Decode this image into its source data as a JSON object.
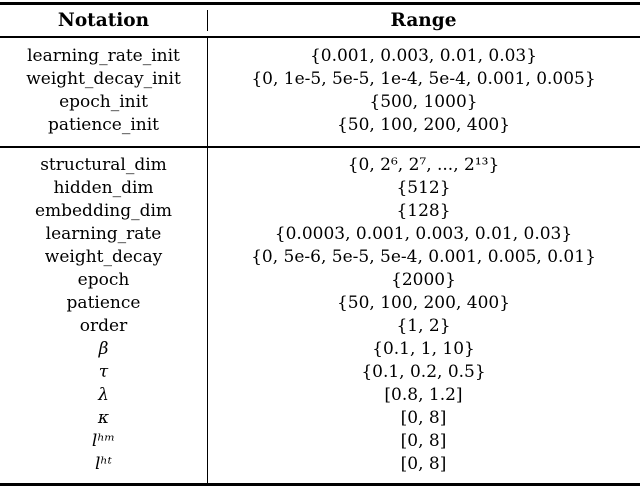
{
  "colors": {
    "background": "#ffffff",
    "text": "#000000",
    "rule": "#000000"
  },
  "table": {
    "header": {
      "notation": "Notation",
      "range": "Range"
    },
    "sections": [
      {
        "rows": [
          {
            "notation": "learning_rate_init",
            "range": "{0.001, 0.003, 0.01, 0.03}"
          },
          {
            "notation": "weight_decay_init",
            "range": "{0, 1e-5, 5e-5, 1e-4, 5e-4, 0.001, 0.005}"
          },
          {
            "notation": "epoch_init",
            "range": "{500, 1000}"
          },
          {
            "notation": "patience_init",
            "range": "{50, 100, 200, 400}"
          }
        ]
      },
      {
        "rows": [
          {
            "notation": "structural_dim",
            "range": "{0, 2⁶, 2⁷, ..., 2¹³}"
          },
          {
            "notation": "hidden_dim",
            "range": "{512}"
          },
          {
            "notation": "embedding_dim",
            "range": "{128}"
          },
          {
            "notation": "learning_rate",
            "range": "{0.0003, 0.001, 0.003, 0.01, 0.03}"
          },
          {
            "notation": "weight_decay",
            "range": "{0, 5e-6, 5e-5, 5e-4, 0.001, 0.005, 0.01}"
          },
          {
            "notation": "epoch",
            "range": "{2000}"
          },
          {
            "notation": "patience",
            "range": "{50, 100, 200, 400}"
          },
          {
            "notation": "order",
            "range": "{1, 2}"
          },
          {
            "notation": "β",
            "range": "{0.1, 1, 10}"
          },
          {
            "notation": "τ",
            "range": "{0.1, 0.2, 0.5}"
          },
          {
            "notation": "λ",
            "range": "[0.8, 1.2]"
          },
          {
            "notation": "κ",
            "range": "[0, 8]"
          },
          {
            "notation": "lʰᵐ",
            "range": "[0, 8]"
          },
          {
            "notation": "lʰᵗ",
            "range": "[0, 8]"
          }
        ]
      }
    ]
  }
}
